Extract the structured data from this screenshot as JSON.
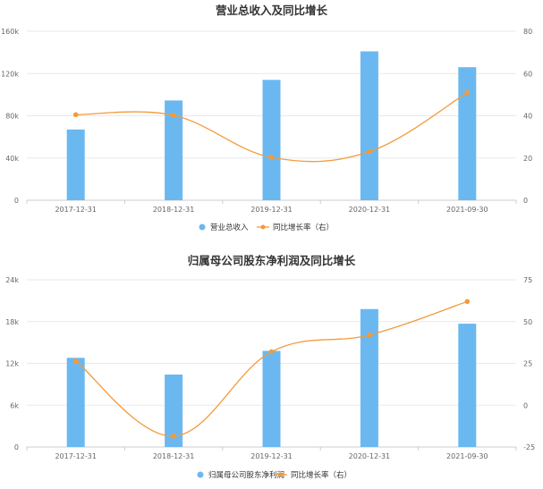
{
  "chart_data": [
    {
      "type": "bar",
      "title": "营业总收入及同比增长",
      "categories": [
        "2017-12-31",
        "2018-12-31",
        "2019-12-31",
        "2020-12-31",
        "2021-09-30"
      ],
      "series": [
        {
          "name": "营业总收入",
          "type": "bar",
          "axis": "left",
          "color": "#6bb8f0",
          "values": [
            67000,
            94500,
            114000,
            141000,
            126000
          ]
        },
        {
          "name": "同比增长率（右）",
          "type": "line",
          "axis": "right",
          "color": "#f39a3c",
          "values": [
            40.5,
            40.2,
            20.3,
            23.0,
            51.0
          ]
        }
      ],
      "ylim_left": [
        0,
        160000
      ],
      "yticks_left": [
        "0",
        "40k",
        "80k",
        "120k",
        "160k"
      ],
      "ylim_right": [
        0,
        80
      ],
      "yticks_right": [
        "0",
        "20",
        "40",
        "60",
        "80"
      ],
      "grid": true,
      "legend": "bottom"
    },
    {
      "type": "bar",
      "title": "归属母公司股东净利润及同比增长",
      "categories": [
        "2017-12-31",
        "2018-12-31",
        "2019-12-31",
        "2020-12-31",
        "2021-09-30"
      ],
      "series": [
        {
          "name": "归属母公司股东净利润",
          "type": "bar",
          "axis": "left",
          "color": "#6bb8f0",
          "values": [
            12800,
            10400,
            13800,
            19800,
            17700
          ]
        },
        {
          "name": "同比增长率（右）",
          "type": "line",
          "axis": "right",
          "color": "#f39a3c",
          "values": [
            26.5,
            -18.5,
            32.0,
            42.0,
            62.0
          ]
        }
      ],
      "ylim_left": [
        0,
        24000
      ],
      "yticks_left": [
        "0",
        "6k",
        "12k",
        "18k",
        "24k"
      ],
      "ylim_right": [
        -25,
        75
      ],
      "yticks_right": [
        "-25",
        "0",
        "25",
        "50",
        "75"
      ],
      "grid": true,
      "legend": "bottom"
    }
  ]
}
